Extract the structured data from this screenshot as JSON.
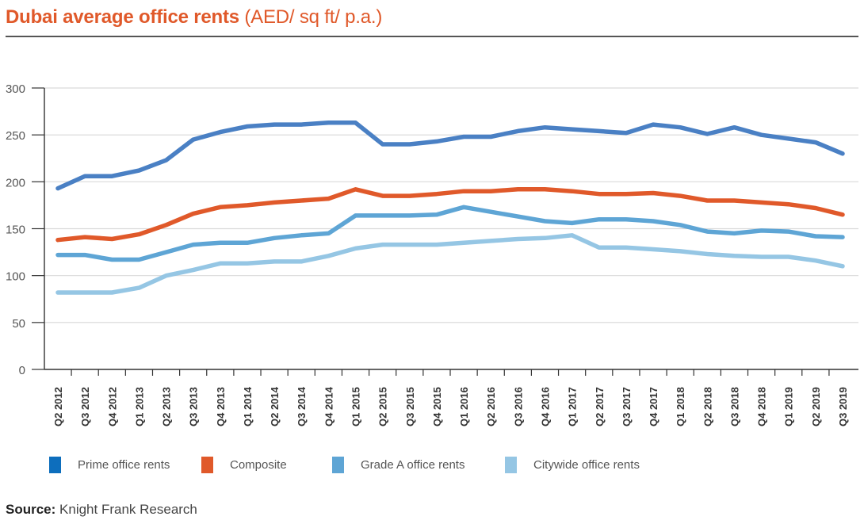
{
  "header": {
    "title_bold": "Dubai average office rents",
    "title_unit": "(AED/ sq ft/ p.a.)"
  },
  "legend": [
    {
      "label": "Prime office rents",
      "color": "#0d6ebd"
    },
    {
      "label": "Composite",
      "color": "#e0592a"
    },
    {
      "label": "Grade A office rents",
      "color": "#5ea5d5"
    },
    {
      "label": "Citywide office rents",
      "color": "#95c6e4"
    }
  ],
  "footer": {
    "source_label": "Source:",
    "source_text": "Knight Frank Research"
  },
  "chart_data": {
    "type": "line",
    "title": "Dubai average office rents (AED/ sq ft/ p.a.)",
    "xlabel": "",
    "ylabel": "",
    "ylim": [
      0,
      300
    ],
    "yticks": [
      0,
      50,
      100,
      150,
      200,
      250,
      300
    ],
    "grid": true,
    "legend_position": "bottom",
    "categories": [
      "Q2 2012",
      "Q3 2012",
      "Q4 2012",
      "Q1 2013",
      "Q2 2013",
      "Q3 2013",
      "Q4 2013",
      "Q1 2014",
      "Q2 2014",
      "Q3 2014",
      "Q4 2014",
      "Q1 2015",
      "Q2 2015",
      "Q3 2015",
      "Q4 2015",
      "Q1 2016",
      "Q2 2016",
      "Q3 2016",
      "Q4 2016",
      "Q1 2017",
      "Q2 2017",
      "Q3 2017",
      "Q4 2017",
      "Q1 2018",
      "Q2 2018",
      "Q3 2018",
      "Q4 2018",
      "Q1 2019",
      "Q2 2019",
      "Q3 2019"
    ],
    "series": [
      {
        "name": "Prime office rents",
        "color": "#4a80c4",
        "values": [
          193,
          206,
          206,
          212,
          223,
          245,
          253,
          259,
          261,
          261,
          263,
          263,
          240,
          240,
          243,
          248,
          248,
          254,
          258,
          256,
          254,
          252,
          261,
          258,
          251,
          258,
          250,
          246,
          242,
          230
        ]
      },
      {
        "name": "Composite",
        "color": "#e0592a",
        "values": [
          138,
          141,
          139,
          144,
          154,
          166,
          173,
          175,
          178,
          180,
          182,
          192,
          185,
          185,
          187,
          190,
          190,
          192,
          192,
          190,
          187,
          187,
          188,
          185,
          180,
          180,
          178,
          176,
          172,
          165
        ]
      },
      {
        "name": "Grade A office rents",
        "color": "#5ea5d5",
        "values": [
          122,
          122,
          117,
          117,
          125,
          133,
          135,
          135,
          140,
          143,
          145,
          164,
          164,
          164,
          165,
          173,
          168,
          163,
          158,
          156,
          160,
          160,
          158,
          154,
          147,
          145,
          148,
          147,
          142,
          141
        ]
      },
      {
        "name": "Citywide office rents",
        "color": "#95c6e4",
        "values": [
          82,
          82,
          82,
          87,
          100,
          106,
          113,
          113,
          115,
          115,
          121,
          129,
          133,
          133,
          133,
          135,
          137,
          139,
          140,
          143,
          130,
          130,
          128,
          126,
          123,
          121,
          120,
          120,
          116,
          110
        ]
      }
    ]
  }
}
